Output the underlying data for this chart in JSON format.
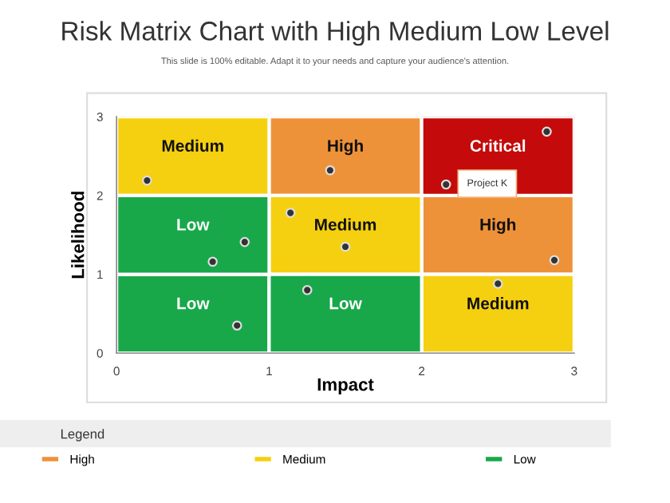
{
  "chart_data": {
    "type": "bar",
    "title": "Risk Matrix Chart with High Medium Low Level",
    "subtitle": "This slide is 100% editable. Adapt it to your needs and capture your audience's attention.",
    "xlabel": "Impact",
    "ylabel": "Likelihood",
    "legend_title": "Legend",
    "xlim": [
      0,
      3
    ],
    "ylim": [
      0,
      3
    ],
    "xticks": [
      0,
      1,
      2,
      3
    ],
    "yticks": [
      0,
      1,
      2,
      3
    ],
    "grid": false,
    "legend": "bottom",
    "marker": "circle",
    "series": [
      {
        "name": "High",
        "color": "#ee9239",
        "x": [
          1.5,
          2.5
        ],
        "base": [
          2,
          1
        ],
        "values": [
          1,
          1
        ],
        "value_labels": [
          "High",
          "High"
        ]
      },
      {
        "name": "Medium",
        "color": "#f5d010",
        "x": [
          0.5,
          1.5,
          2.5
        ],
        "base": [
          2,
          1,
          0
        ],
        "values": [
          1,
          1,
          1
        ],
        "value_labels": [
          "Medium",
          "Medium",
          "Medium"
        ]
      },
      {
        "name": "Low",
        "color": "#18a84a",
        "x": [
          0.5,
          1.5
        ],
        "base": [
          0,
          0
        ],
        "values": [
          1,
          1
        ],
        "value_labels": [
          "Low",
          "Low"
        ]
      },
      {
        "color": "#18a84a",
        "x": [
          0.5
        ],
        "base": [
          1
        ],
        "values": [
          1
        ],
        "value_labels": [
          "Low"
        ]
      },
      {
        "color": "#c40a0a",
        "x": [
          2.5
        ],
        "base": [
          2
        ],
        "values": [
          1
        ],
        "value_labels": [
          "Critical"
        ]
      },
      {
        "type": "scatter",
        "color": "#333333",
        "x": [
          0.2,
          1.4,
          2.82,
          2.16,
          1.14,
          0.84,
          1.5,
          0.63,
          2.87,
          2.5,
          1.25,
          0.79
        ],
        "values": [
          2.19,
          2.32,
          2.81,
          2.14,
          1.78,
          1.41,
          1.35,
          1.16,
          1.18,
          0.88,
          0.8,
          0.35
        ]
      }
    ],
    "annotations": [
      {
        "text": "Project K",
        "x": 2.43,
        "y": 2.15
      }
    ]
  }
}
